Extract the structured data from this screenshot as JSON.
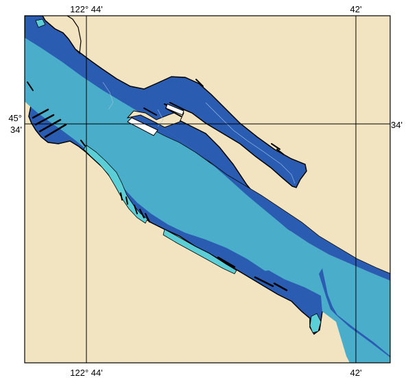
{
  "map": {
    "grid": {
      "longitude_labels": {
        "top": [
          "122° 44'",
          "42'"
        ],
        "bottom": [
          "122° 44'",
          "42'"
        ]
      },
      "latitude_labels": {
        "left_deg": "45°",
        "left_min": "34'",
        "right": "34'"
      }
    },
    "colors": {
      "land": "#f2e4c0",
      "deep_water": "#4aaecb",
      "shallow_water": "#2a5cb2",
      "tidal_flat": "#5ccfd6",
      "grid_line": "#000000",
      "frame": "#000000",
      "pier": "#000000",
      "dock_highlight": "#ffffff"
    }
  }
}
